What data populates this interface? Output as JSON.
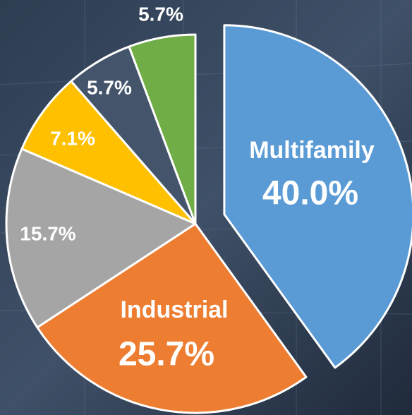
{
  "chart_data": {
    "type": "pie",
    "categories": [
      "Multifamily",
      "Industrial",
      null,
      null,
      null,
      null
    ],
    "values": [
      40.0,
      25.7,
      15.7,
      7.1,
      5.7,
      5.7
    ],
    "value_labels": [
      "40.0%",
      "25.7%",
      "15.7%",
      "7.1%",
      "5.7%",
      "5.7%"
    ],
    "colors": [
      "#5b9bd5",
      "#ed7d31",
      "#a5a5a5",
      "#ffc000",
      "#44546a",
      "#70ad47"
    ],
    "exploded": [
      0
    ]
  }
}
